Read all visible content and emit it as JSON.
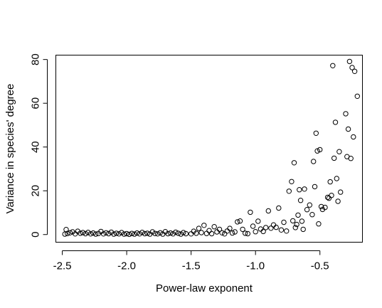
{
  "chart_data": {
    "type": "scatter",
    "title": "",
    "xlabel": "Power-law exponent",
    "ylabel": "Variance in species' degree",
    "xlim": [
      -2.55,
      -0.17
    ],
    "ylim": [
      -3.5,
      82
    ],
    "xticks": [
      -2.5,
      -2.0,
      -1.5,
      -1.0,
      -0.5
    ],
    "xtick_labels": [
      "-2.5",
      "-2.0",
      "-1.5",
      "-1.0",
      "-0.5"
    ],
    "yticks": [
      0,
      20,
      40,
      60,
      80
    ],
    "ytick_labels": [
      "0",
      "20",
      "40",
      "60",
      "80"
    ],
    "grid": false,
    "marker": "open-circle",
    "points": [
      [
        -2.48,
        0.2
      ],
      [
        -2.47,
        2.3
      ],
      [
        -2.46,
        0.5
      ],
      [
        -2.44,
        0.8
      ],
      [
        -2.42,
        1.2
      ],
      [
        -2.4,
        0.3
      ],
      [
        -2.38,
        1.5
      ],
      [
        -2.36,
        0.6
      ],
      [
        -2.34,
        0.9
      ],
      [
        -2.32,
        0.4
      ],
      [
        -2.3,
        1.0
      ],
      [
        -2.28,
        0.3
      ],
      [
        -2.26,
        0.7
      ],
      [
        -2.24,
        0.2
      ],
      [
        -2.22,
        0.5
      ],
      [
        -2.2,
        1.4
      ],
      [
        -2.18,
        0.3
      ],
      [
        -2.16,
        0.8
      ],
      [
        -2.14,
        0.4
      ],
      [
        -2.12,
        1.1
      ],
      [
        -2.1,
        0.2
      ],
      [
        -2.08,
        0.6
      ],
      [
        -2.06,
        0.3
      ],
      [
        -2.04,
        0.9
      ],
      [
        -2.02,
        0.2
      ],
      [
        -2.0,
        0.4
      ],
      [
        -1.98,
        0.1
      ],
      [
        -1.96,
        0.5
      ],
      [
        -1.94,
        0.2
      ],
      [
        -1.92,
        0.7
      ],
      [
        -1.9,
        0.3
      ],
      [
        -1.88,
        1.0
      ],
      [
        -1.86,
        0.4
      ],
      [
        -1.84,
        0.6
      ],
      [
        -1.82,
        0.2
      ],
      [
        -1.8,
        1.2
      ],
      [
        -1.78,
        0.5
      ],
      [
        -1.76,
        0.3
      ],
      [
        -1.74,
        0.8
      ],
      [
        -1.72,
        0.2
      ],
      [
        -1.7,
        1.3
      ],
      [
        -1.68,
        0.4
      ],
      [
        -1.66,
        0.7
      ],
      [
        -1.64,
        0.3
      ],
      [
        -1.62,
        1.1
      ],
      [
        -1.6,
        0.6
      ],
      [
        -1.58,
        0.2
      ],
      [
        -1.56,
        0.9
      ],
      [
        -1.54,
        0.4
      ],
      [
        -1.5,
        0.3
      ],
      [
        -1.48,
        1.5
      ],
      [
        -1.46,
        0.6
      ],
      [
        -1.44,
        2.8
      ],
      [
        -1.42,
        0.9
      ],
      [
        -1.4,
        4.2
      ],
      [
        -1.38,
        0.5
      ],
      [
        -1.36,
        1.8
      ],
      [
        -1.34,
        0.4
      ],
      [
        -1.32,
        3.6
      ],
      [
        -1.3,
        1.2
      ],
      [
        -1.28,
        2.4
      ],
      [
        -1.26,
        0.8
      ],
      [
        -1.24,
        0.3
      ],
      [
        -1.22,
        1.6
      ],
      [
        -1.2,
        2.8
      ],
      [
        -1.18,
        0.7
      ],
      [
        -1.16,
        1.2
      ],
      [
        -1.14,
        5.8
      ],
      [
        -1.12,
        6.2
      ],
      [
        -1.1,
        2.4
      ],
      [
        -1.08,
        0.6
      ],
      [
        -1.06,
        0.4
      ],
      [
        -1.04,
        10.2
      ],
      [
        -1.02,
        3.8
      ],
      [
        -1.0,
        1.3
      ],
      [
        -0.98,
        6.1
      ],
      [
        -0.96,
        2.5
      ],
      [
        -0.94,
        1.4
      ],
      [
        -0.92,
        3.2
      ],
      [
        -0.9,
        10.8
      ],
      [
        -0.88,
        2.9
      ],
      [
        -0.86,
        4.4
      ],
      [
        -0.84,
        3.3
      ],
      [
        -0.82,
        12.1
      ],
      [
        -0.8,
        2.1
      ],
      [
        -0.78,
        5.6
      ],
      [
        -0.76,
        1.6
      ],
      [
        -0.74,
        19.8
      ],
      [
        -0.72,
        24.2
      ],
      [
        -0.71,
        6.3
      ],
      [
        -0.7,
        32.8
      ],
      [
        -0.69,
        3.2
      ],
      [
        -0.68,
        4.6
      ],
      [
        -0.67,
        8.9
      ],
      [
        -0.66,
        20.5
      ],
      [
        -0.65,
        15.6
      ],
      [
        -0.64,
        6.1
      ],
      [
        -0.63,
        2.4
      ],
      [
        -0.62,
        20.8
      ],
      [
        -0.6,
        11.4
      ],
      [
        -0.58,
        13.5
      ],
      [
        -0.56,
        9.1
      ],
      [
        -0.55,
        33.4
      ],
      [
        -0.54,
        21.9
      ],
      [
        -0.53,
        46.3
      ],
      [
        -0.52,
        38.2
      ],
      [
        -0.51,
        4.9
      ],
      [
        -0.5,
        38.8
      ],
      [
        -0.49,
        12.8
      ],
      [
        -0.48,
        11.5
      ],
      [
        -0.46,
        12.4
      ],
      [
        -0.44,
        17.0
      ],
      [
        -0.43,
        16.6
      ],
      [
        -0.42,
        24.1
      ],
      [
        -0.41,
        17.9
      ],
      [
        -0.4,
        77.2
      ],
      [
        -0.39,
        34.9
      ],
      [
        -0.38,
        51.3
      ],
      [
        -0.37,
        25.6
      ],
      [
        -0.36,
        15.2
      ],
      [
        -0.35,
        37.9
      ],
      [
        -0.34,
        19.4
      ],
      [
        -0.3,
        55.2
      ],
      [
        -0.29,
        35.6
      ],
      [
        -0.28,
        48.2
      ],
      [
        -0.27,
        79.1
      ],
      [
        -0.26,
        34.8
      ],
      [
        -0.25,
        76.3
      ],
      [
        -0.24,
        44.6
      ],
      [
        -0.23,
        74.6
      ],
      [
        -0.21,
        63.2
      ]
    ]
  }
}
